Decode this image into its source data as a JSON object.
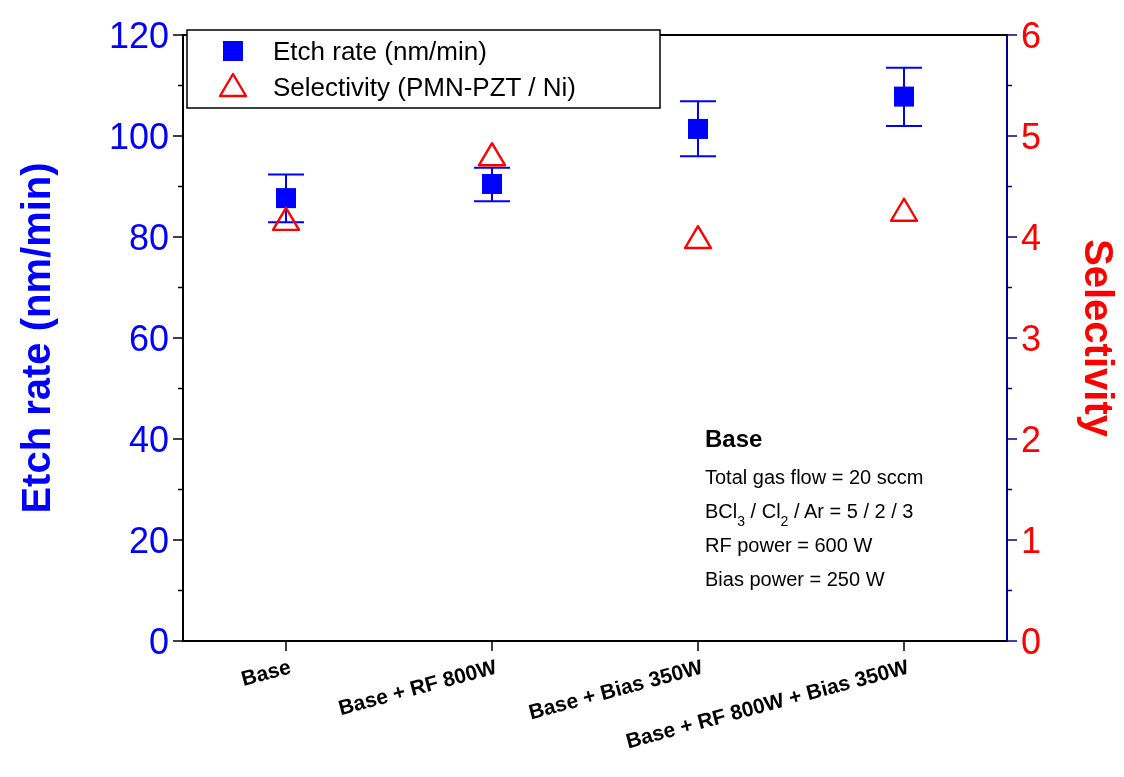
{
  "chart_data": {
    "type": "scatter",
    "xlabel": null,
    "ylabel": "Etch rate (nm/min)",
    "y2label": "Selectivity",
    "categories": [
      "Base",
      "Base + RF 800W",
      "Base + Bias 350W",
      "Base + RF 800W + Bias 350W"
    ],
    "series": [
      {
        "name": "Etch rate (nm/min)",
        "color": "#0000ff",
        "marker": "square",
        "values": [
          87.7,
          90.5,
          101.4,
          107.8
        ],
        "errors": [
          [
            82.9,
            92.4
          ],
          [
            87.1,
            93.7
          ],
          [
            96.0,
            106.9
          ],
          [
            102.0,
            113.5
          ]
        ]
      },
      {
        "name": "Selectivity (PMN-PZT / Ni)",
        "color": "#ff0000",
        "marker": "triangle",
        "axis": "y2",
        "values": [
          4.16,
          4.8,
          3.98,
          4.25
        ]
      }
    ],
    "ylim": [
      0,
      120
    ],
    "yticks": [
      0,
      {
        "value": 10,
        "label": null
      },
      20,
      {
        "value": 30,
        "label": null
      },
      40,
      {
        "value": 50,
        "label": null
      },
      60,
      {
        "value": 70,
        "label": null
      },
      80,
      {
        "value": 90,
        "label": null
      },
      100,
      {
        "value": 110,
        "label": null
      },
      120
    ],
    "y2lim": [
      0,
      6
    ],
    "y2ticks": [
      0,
      {
        "value": 0.5,
        "label": null
      },
      1,
      {
        "value": 1.5,
        "label": null
      },
      2,
      {
        "value": 2.5,
        "label": null
      },
      3,
      {
        "value": 3.5,
        "label": null
      },
      4,
      {
        "value": 4.5,
        "label": null
      },
      5,
      {
        "value": 5.5,
        "label": null
      },
      6
    ],
    "legend": "top left",
    "grid": false,
    "annotations": [
      "Base",
      "Total gas flow = 20 sccm",
      "BCl$_{3}$ / Cl$_{2}$ / Ar = 5 / 2 / 3",
      "RF power = 600 W",
      "Bias power = 250 W"
    ]
  }
}
